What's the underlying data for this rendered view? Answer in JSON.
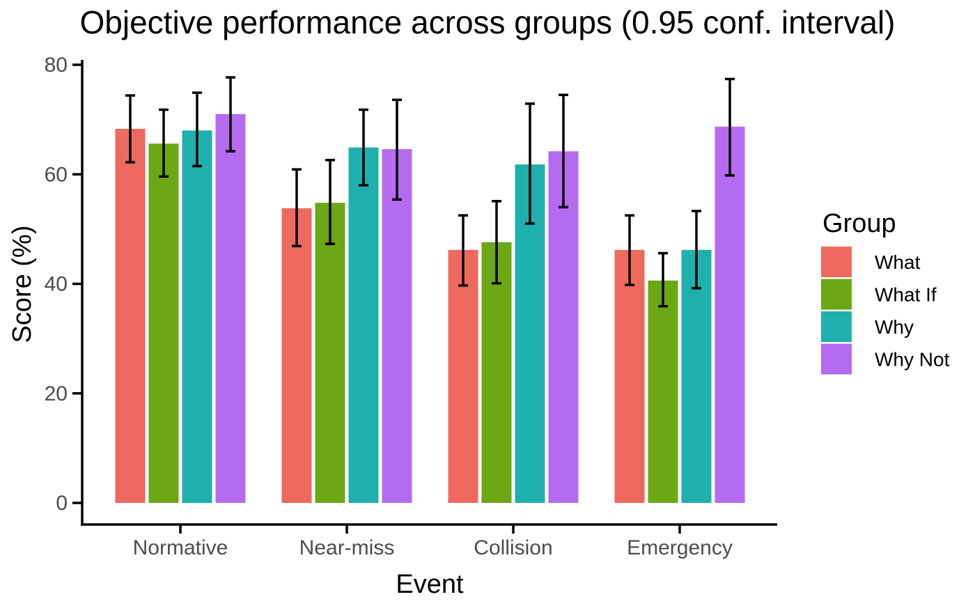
{
  "chart_data": {
    "type": "bar",
    "title": "Objective performance across groups (0.95 conf. interval)",
    "xlabel": "Event",
    "ylabel": "Score (%)",
    "legend_title": "Group",
    "legend_position": "right",
    "grid": false,
    "error_bars": true,
    "conf_level": 0.95,
    "categories": [
      "Normative",
      "Near-miss",
      "Collision",
      "Emergency"
    ],
    "y_ticks": [
      0,
      20,
      40,
      60,
      80
    ],
    "ylim": [
      0,
      80
    ],
    "series": [
      {
        "name": "What",
        "color": "#EE6A5E",
        "values": [
          68.3,
          53.8,
          46.2,
          46.2
        ],
        "ci_low": [
          62.2,
          46.9,
          39.7,
          39.8
        ],
        "ci_high": [
          74.4,
          60.9,
          52.5,
          52.5
        ]
      },
      {
        "name": "What If",
        "color": "#6CA716",
        "values": [
          65.6,
          54.8,
          47.6,
          40.6
        ],
        "ci_low": [
          59.6,
          47.3,
          40.1,
          35.9
        ],
        "ci_high": [
          71.8,
          62.6,
          55.1,
          45.6
        ]
      },
      {
        "name": "Why",
        "color": "#1FB0AD",
        "values": [
          68.0,
          64.9,
          61.8,
          46.2
        ],
        "ci_low": [
          61.5,
          58.0,
          51.0,
          39.2
        ],
        "ci_high": [
          74.9,
          71.8,
          72.9,
          53.3
        ]
      },
      {
        "name": "Why Not",
        "color": "#B56BEF",
        "values": [
          71.0,
          64.6,
          64.2,
          68.7
        ],
        "ci_low": [
          64.2,
          55.4,
          54.0,
          59.8
        ],
        "ci_high": [
          77.7,
          73.6,
          74.5,
          77.4
        ]
      }
    ],
    "colors": {
      "axis": "#000000",
      "error_bar": "#000000",
      "tick_label": "#4d4d4d",
      "background": "#ffffff"
    }
  }
}
